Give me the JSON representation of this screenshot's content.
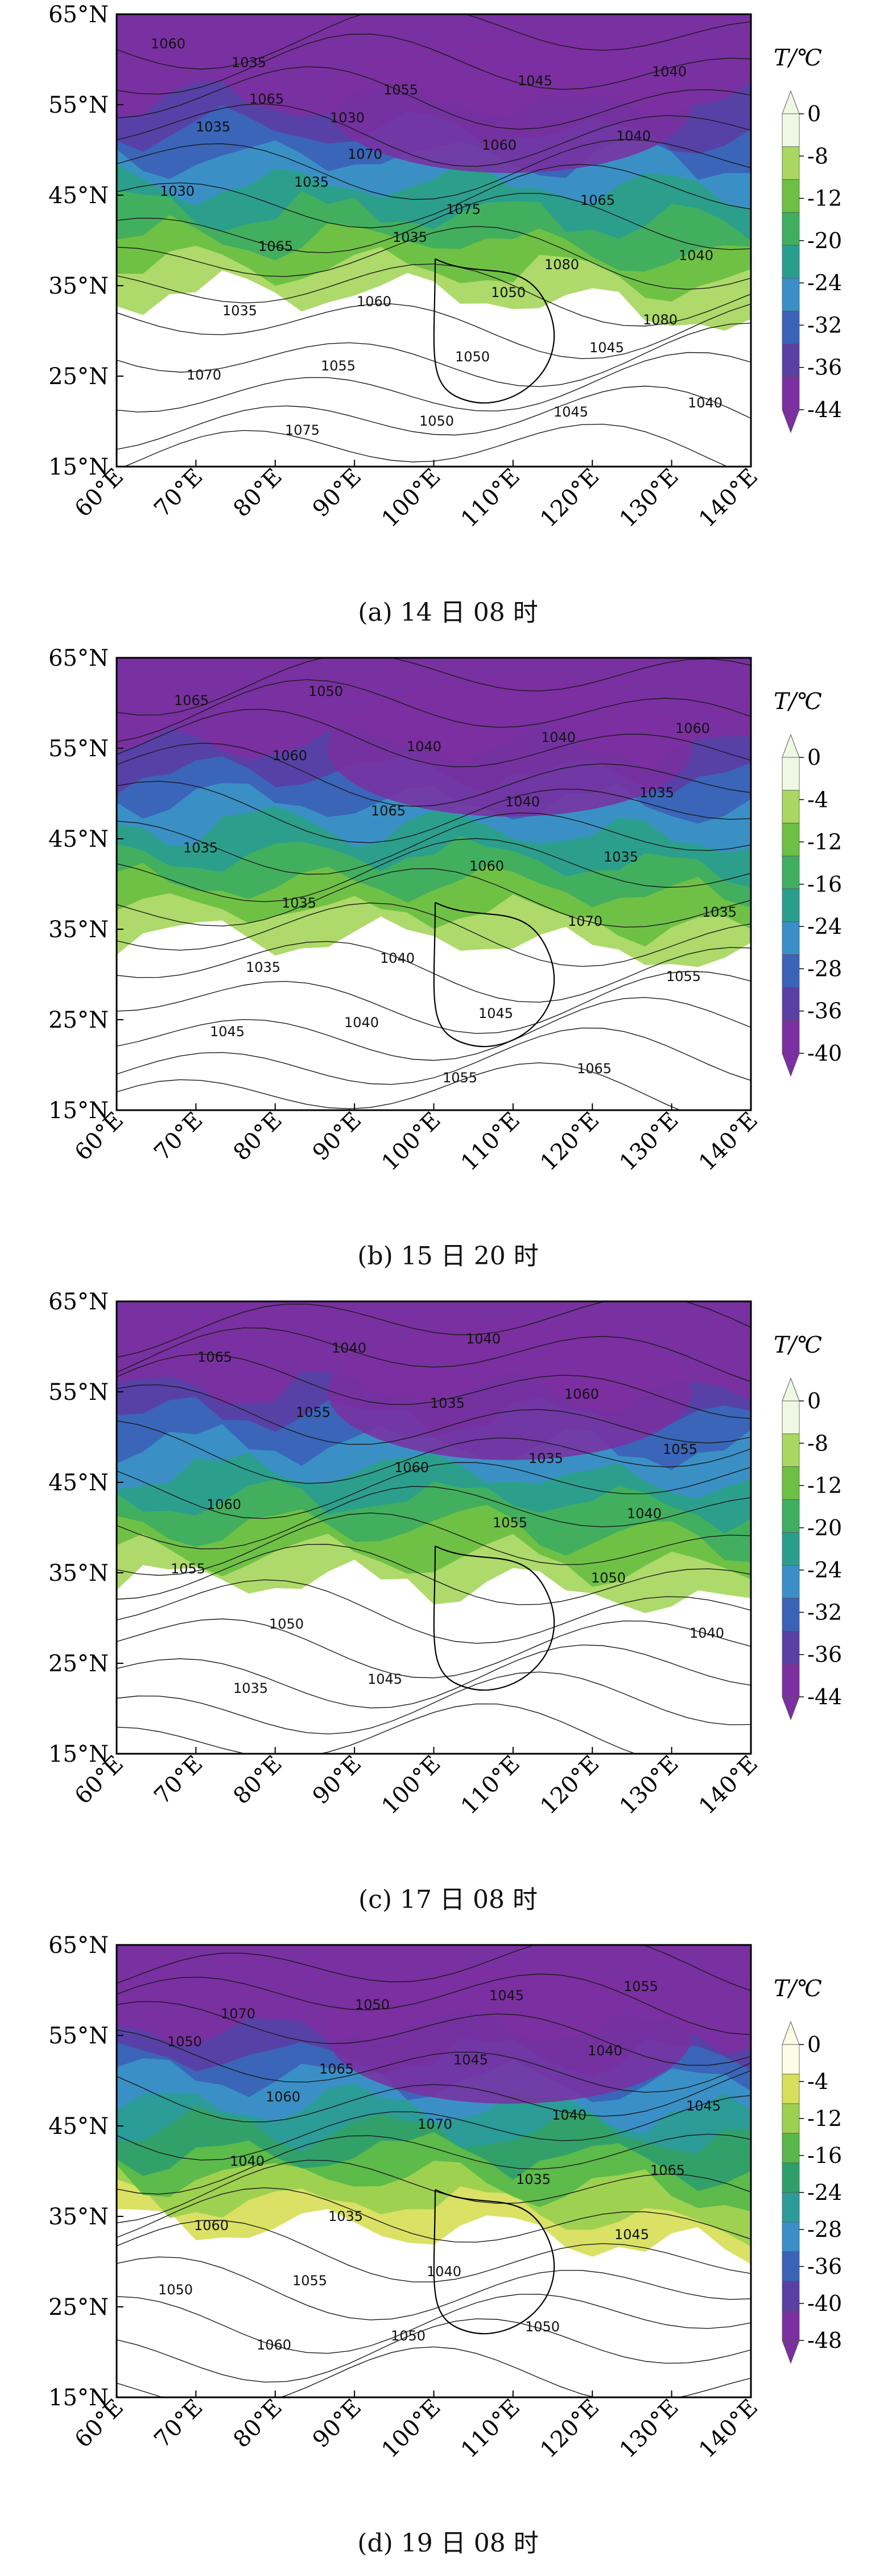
{
  "panels": [
    {
      "caption": "(a) 14 日 08 时",
      "colorbar_title": "T/℃",
      "colorbar_ticks": [
        "0",
        "-8",
        "-12",
        "-20",
        "-24",
        "-32",
        "-36",
        "-44"
      ],
      "colorbar_colors": [
        "#eef8e3",
        "#a9d862",
        "#6cc043",
        "#3fae60",
        "#2a9e8e",
        "#3b8fc8",
        "#3a63b8",
        "#5a3fa4",
        "#7b2fa0"
      ],
      "isobar_labels": [
        "1060",
        "1065",
        "1070",
        "1075",
        "1080",
        "1080",
        "1070",
        "1075",
        "1055",
        "1060",
        "1065",
        "1040",
        "1035",
        "1055",
        "1050",
        "1045",
        "1040",
        "1030",
        "1065",
        "1060",
        "1050",
        "1045",
        "1040",
        "1035",
        "1035",
        "1035",
        "1050",
        "1045",
        "1040",
        "1035",
        "1030"
      ]
    },
    {
      "caption": "(b) 15 日 20 时",
      "colorbar_title": "T/℃",
      "colorbar_ticks": [
        "0",
        "-4",
        "-12",
        "-16",
        "-24",
        "-28",
        "-36",
        "-40"
      ],
      "colorbar_colors": [
        "#eef8e3",
        "#a9d862",
        "#6cc043",
        "#3fae60",
        "#2a9e8e",
        "#3b8fc8",
        "#3a63b8",
        "#5a3fa4",
        "#7b2fa0"
      ],
      "isobar_labels": [
        "1065",
        "1060",
        "1065",
        "1060",
        "1070",
        "1055",
        "1045",
        "1050",
        "1040",
        "1040",
        "1035",
        "1035",
        "1035",
        "1040",
        "1055",
        "1040",
        "1035",
        "1035",
        "1035",
        "1040",
        "1045",
        "1065",
        "1060"
      ]
    },
    {
      "caption": "(c) 17 日 08 时",
      "colorbar_title": "T/℃",
      "colorbar_ticks": [
        "0",
        "-8",
        "-12",
        "-20",
        "-24",
        "-32",
        "-36",
        "-44"
      ],
      "colorbar_colors": [
        "#eef8e3",
        "#a9d862",
        "#6cc043",
        "#3fae60",
        "#2a9e8e",
        "#3b8fc8",
        "#3a63b8",
        "#5a3fa4",
        "#7b2fa0"
      ],
      "isobar_labels": [
        "1065",
        "1055",
        "1060",
        "1055",
        "1050",
        "1040",
        "1035",
        "1040",
        "1035",
        "1035",
        "1040",
        "1055",
        "1050",
        "1045",
        "1040",
        "1060",
        "1055",
        "1060"
      ]
    },
    {
      "caption": "(d) 19 日 08 时",
      "colorbar_title": "T/℃",
      "colorbar_ticks": [
        "0",
        "-4",
        "-12",
        "-16",
        "-24",
        "-28",
        "-36",
        "-40",
        "-48"
      ],
      "colorbar_colors": [
        "#fbfbe6",
        "#d8df5c",
        "#9cd050",
        "#58b94a",
        "#2f9f6a",
        "#2b9c9a",
        "#3b8fc8",
        "#3a63b8",
        "#5a3fa4",
        "#7b2fa0"
      ],
      "isobar_labels": [
        "1070",
        "1065",
        "1070",
        "1035",
        "1045",
        "1050",
        "1060",
        "1050",
        "1045",
        "1040",
        "1065",
        "1060",
        "1055",
        "1050",
        "1045",
        "1040",
        "1045",
        "1040",
        "1035",
        "1040",
        "1050",
        "1055",
        "1050",
        "1060"
      ]
    }
  ],
  "lat_labels": [
    "65°N",
    "55°N",
    "45°N",
    "35°N",
    "25°N",
    "15°N"
  ],
  "lon_labels": [
    "60°E",
    "70°E",
    "80°E",
    "90°E",
    "100°E",
    "110°E",
    "120°E",
    "130°E",
    "140°E"
  ]
}
